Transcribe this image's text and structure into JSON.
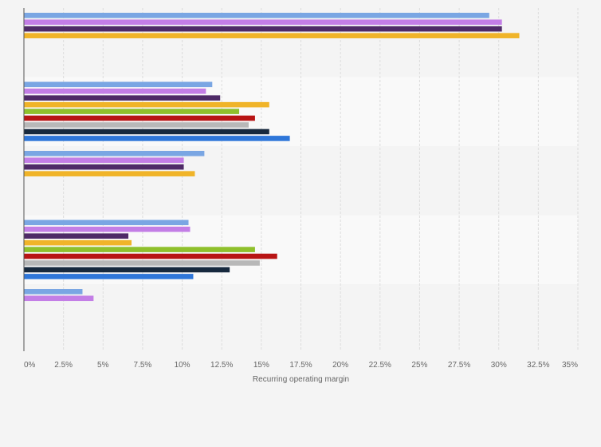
{
  "chart_data": {
    "type": "bar",
    "orientation": "horizontal",
    "xlabel": "Recurring operating margin",
    "xlim": [
      0,
      35
    ],
    "x_ticks": [
      "0%",
      "2.5%",
      "5%",
      "7.5%",
      "10%",
      "12.5%",
      "15%",
      "17.5%",
      "20%",
      "22.5%",
      "25%",
      "27.5%",
      "30%",
      "32.5%",
      "35%"
    ],
    "grid": true,
    "legend": false,
    "series_colors": [
      "#7aa6e3",
      "#c37ee6",
      "#4e2a67",
      "#f0b429",
      "#8fc02c",
      "#b81414",
      "#b8b8b8",
      "#17293e",
      "#2e76d9"
    ],
    "groups": [
      {
        "values": [
          29.4,
          30.2,
          30.2,
          31.3
        ]
      },
      {
        "values": [
          11.9,
          11.5,
          12.4,
          15.5,
          13.6,
          14.6,
          14.2,
          15.5,
          16.8
        ]
      },
      {
        "values": [
          11.4,
          10.1,
          10.1,
          10.8
        ]
      },
      {
        "values": [
          10.4,
          10.5,
          6.6,
          6.8,
          14.6,
          16.0,
          14.9,
          13.0,
          10.7
        ]
      },
      {
        "values": [
          3.7,
          4.4
        ]
      }
    ]
  }
}
